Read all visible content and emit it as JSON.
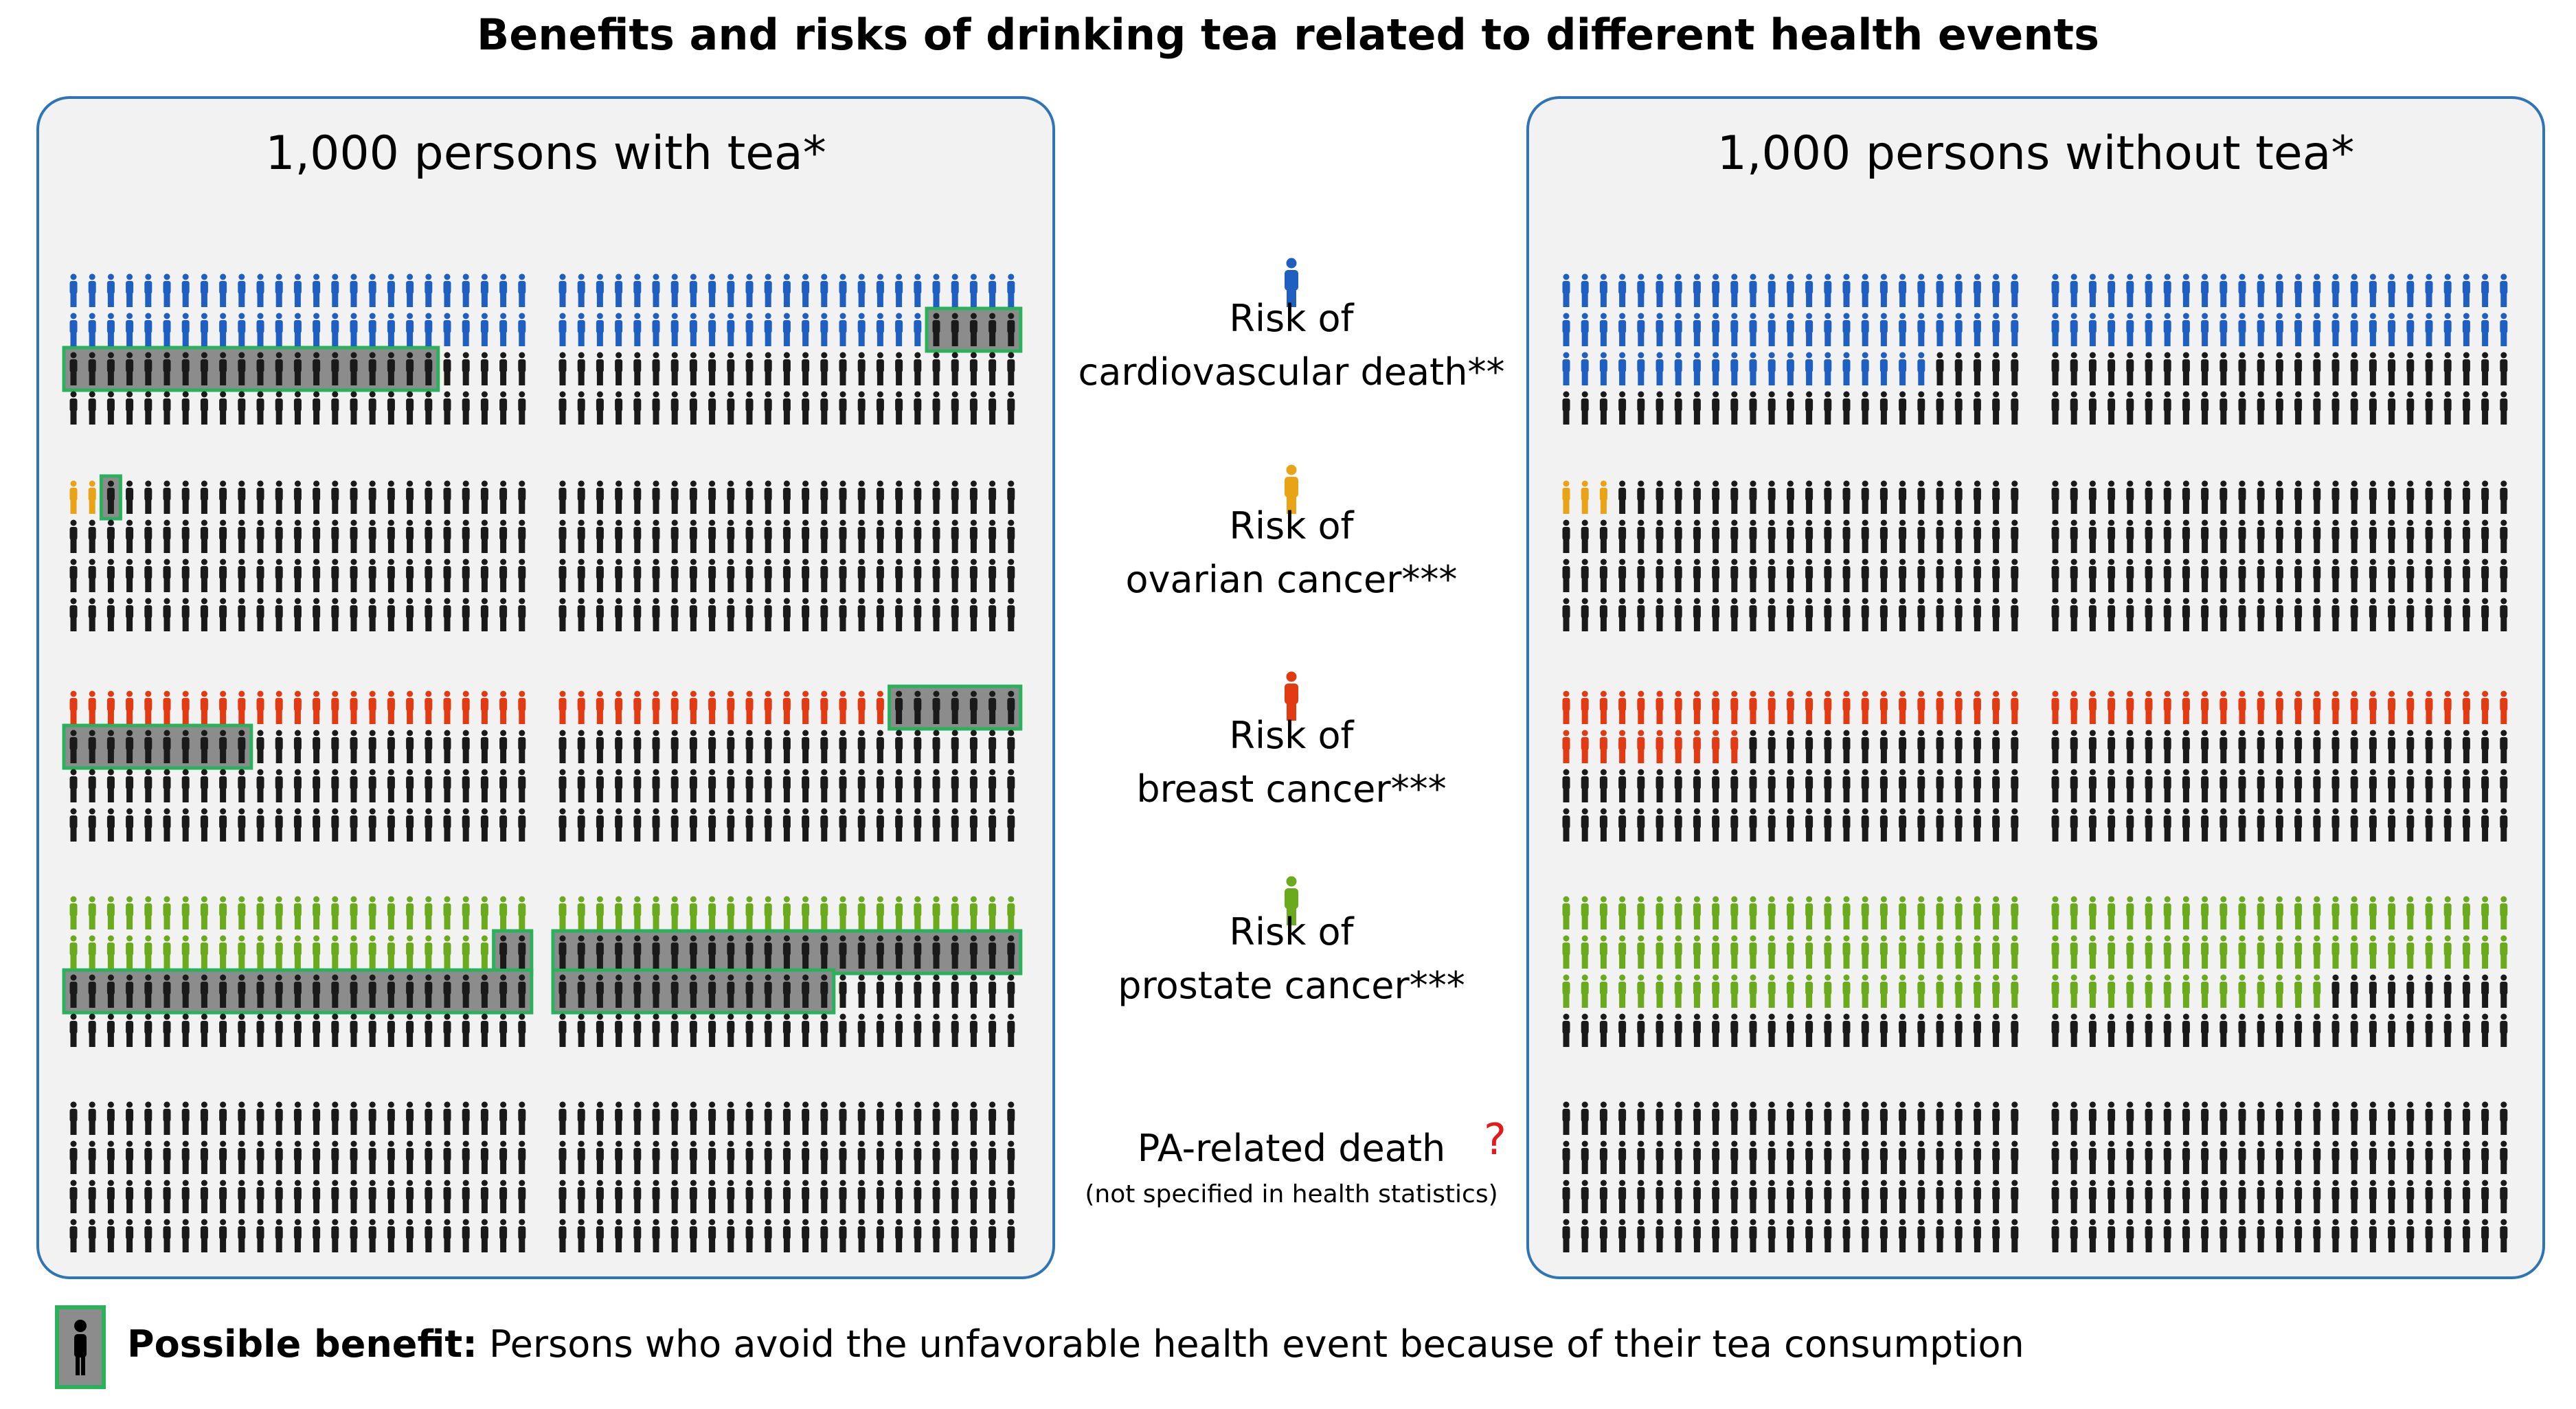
{
  "title": "Benefits and risks of drinking tea related to different health events",
  "panels": {
    "with_tea": "1,000 persons with tea*",
    "without_tea": "1,000 persons without tea*"
  },
  "categories": [
    {
      "key": "cardio",
      "color": "#1f5fc2",
      "icon": "person-icon",
      "line1": "Risk of",
      "line2": "cardiovascular death**",
      "with_tea": {
        "affected": 95,
        "benefit": 25
      },
      "without_tea": {
        "affected": 120
      }
    },
    {
      "key": "ovarian",
      "color": "#e8a317",
      "icon": "person-icon",
      "line1": "Risk of",
      "line2": "ovarian cancer***",
      "with_tea": {
        "affected": 2,
        "benefit": 1
      },
      "without_tea": {
        "affected": 3
      }
    },
    {
      "key": "breast",
      "color": "#e23a12",
      "icon": "person-icon",
      "line1": "Risk of",
      "line2": "breast cancer***",
      "with_tea": {
        "affected": 43,
        "benefit": 17
      },
      "without_tea": {
        "affected": 60
      }
    },
    {
      "key": "prostate",
      "color": "#6aaa1c",
      "icon": "person-icon",
      "line1": "Risk of",
      "line2": "prostate cancer***",
      "with_tea": {
        "affected": 73,
        "benefit": 67
      },
      "without_tea": {
        "affected": 140
      }
    },
    {
      "key": "pa",
      "color": "#1a1a1a",
      "icon": "person-icon",
      "line1": "PA-related death",
      "line2": "(not specified in health statistics)",
      "question": "?",
      "with_tea": {
        "affected": 0,
        "benefit": 0
      },
      "without_tea": {
        "affected": 0
      }
    }
  ],
  "colors": {
    "neutral": "#1a1a1a",
    "benefit_fill": "#8c8c8c",
    "benefit_border": "#2bb15c",
    "panel_bg": "#f2f2f2",
    "panel_border": "#2e75b6",
    "question": "#e31a1c"
  },
  "legend": {
    "label": "Possible benefit:",
    "text": "Persons who avoid the unfavorable health event because of their tea consumption"
  }
}
